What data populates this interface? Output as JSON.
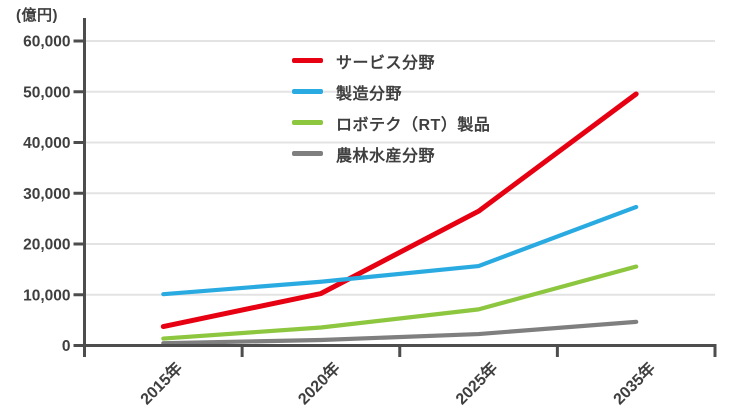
{
  "chart": {
    "unit_label": "(億円)",
    "y_tick_labels": [
      "0",
      "10,000",
      "20,000",
      "30,000",
      "40,000",
      "50,000",
      "60,000"
    ],
    "x_tick_labels": [
      "2015年",
      "2020年",
      "2025年",
      "2035年"
    ],
    "colors": {
      "service": "#e60012",
      "manufacturing": "#29abe2",
      "robotech": "#8dc63f",
      "agriculture": "#7f7f7f",
      "axis": "#4d4d4d",
      "grid": "#e3e3e3",
      "text": "#3f3f3f"
    }
  },
  "chart_data": {
    "type": "line",
    "title": "",
    "xlabel": "",
    "ylabel": "(億円)",
    "categories": [
      "2015年",
      "2020年",
      "2025年",
      "2035年"
    ],
    "series": [
      {
        "name": "サービス分野",
        "color": "#e60012",
        "values": [
          3733,
          10241,
          26462,
          49568
        ]
      },
      {
        "name": "製造分野",
        "color": "#29abe2",
        "values": [
          10117,
          12564,
          15657,
          27294
        ]
      },
      {
        "name": "ロボテク（RT）製品",
        "color": "#8dc63f",
        "values": [
          1372,
          3551,
          7121,
          15555
        ]
      },
      {
        "name": "農林水産分野",
        "color": "#7f7f7f",
        "values": [
          459,
          1085,
          2255,
          4663
        ]
      }
    ],
    "ylim": [
      0,
      60000
    ],
    "y_step": 10000,
    "grid": true,
    "legend_position": "upper-center-inside",
    "x_labels_rotated_degrees": -45
  }
}
